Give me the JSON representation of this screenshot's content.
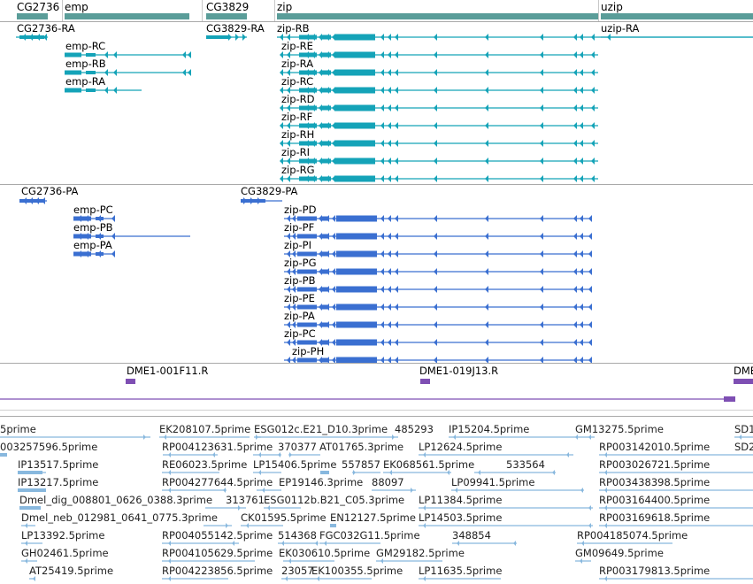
{
  "colors": {
    "transcript": "#14a3b8",
    "protein": "#3a6fd1",
    "est": "#88b8de",
    "clone": "#7e4fb3",
    "gene_bar": "#5a9d99"
  },
  "gene_track": {
    "genes": [
      {
        "label": "CG2736"
      },
      {
        "label": "emp"
      },
      {
        "label": "CG3829"
      },
      {
        "label": "zip"
      },
      {
        "label": "uzip"
      }
    ]
  },
  "transcript_track": {
    "transcripts": [
      {
        "label": "CG2736-RA"
      },
      {
        "label": "emp-RC"
      },
      {
        "label": "emp-RB"
      },
      {
        "label": "emp-RA"
      },
      {
        "label": "CG3829-RA"
      },
      {
        "label": "zip-RB"
      },
      {
        "label": "zip-RE"
      },
      {
        "label": "zip-RA"
      },
      {
        "label": "zip-RC"
      },
      {
        "label": "zip-RD"
      },
      {
        "label": "zip-RF"
      },
      {
        "label": "zip-RH"
      },
      {
        "label": "zip-RI"
      },
      {
        "label": "zip-RG"
      },
      {
        "label": "uzip-RA"
      }
    ]
  },
  "protein_track": {
    "proteins": [
      {
        "label": "CG2736-PA"
      },
      {
        "label": "emp-PC"
      },
      {
        "label": "emp-PB"
      },
      {
        "label": "emp-PA"
      },
      {
        "label": "CG3829-PA"
      },
      {
        "label": "zip-PD"
      },
      {
        "label": "zip-PF"
      },
      {
        "label": "zip-PI"
      },
      {
        "label": "zip-PG"
      },
      {
        "label": "zip-PB"
      },
      {
        "label": "zip-PE"
      },
      {
        "label": "zip-PA"
      },
      {
        "label": "zip-PC"
      },
      {
        "label": "zip-PH"
      }
    ]
  },
  "clone_track": {
    "clones": [
      {
        "label": "DME1-001F11.R"
      },
      {
        "label": "DME1-019J13.R"
      },
      {
        "label": "DME"
      }
    ]
  },
  "est_track": {
    "rows": [
      [
        "5prime",
        "EK208107.5prime",
        "ESG012c.E21_D10.3prime",
        "485293",
        "IP15204.5prime",
        "GM13275.5prime",
        "SD1"
      ],
      [
        "003257596.5prime",
        "RP004123631.5prime",
        "370377",
        "AT01765.3prime",
        "LP12624.5prime",
        "RP003142010.5prime",
        "SD2"
      ],
      [
        "IP13517.5prime",
        "RE06023.5prime",
        "LP15406.5prime",
        "557857",
        "EK068561.5prime",
        "533564",
        "RP003026721.5prime"
      ],
      [
        "IP13217.5prime",
        "RP004277644.5prime",
        "EP19146.3prime",
        "88097",
        "LP09941.5prime",
        "RP003438398.5prime"
      ],
      [
        "Dmel_dig_008801_0626_0388.3prime",
        "313761",
        "ESG0112b.B21_C05.3prime",
        "LP11384.5prime",
        "RP003164400.5prime"
      ],
      [
        "Dmel_neb_012981_0641_0775.3prime",
        "CK01595.5prime",
        "EN12127.5prime",
        "LP14503.5prime",
        "RP003169618.5prime"
      ],
      [
        "LP13392.5prime",
        "RP004055142.5prime",
        "514368",
        "FGC032G11.5prime",
        "348854",
        "RP004185074.5prime"
      ],
      [
        "GH02461.5prime",
        "RP004105629.5prime",
        "EK030610.5prime",
        "GM29182.5prime",
        "GM09649.5prime"
      ],
      [
        "AT25419.5prime",
        "RP004223856.5prime",
        "23057",
        "EK100355.5prime",
        "LP11635.5prime",
        "RP003179813.5prime"
      ]
    ]
  }
}
